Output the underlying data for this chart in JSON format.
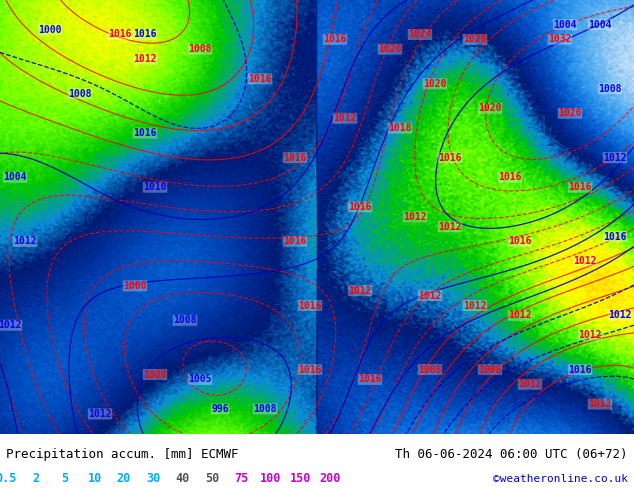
{
  "title_left": "Precipitation accum. [mm] ECMWF",
  "title_right": "Th 06-06-2024 06:00 UTC (06+72)",
  "credit": "©weatheronline.co.uk",
  "colorbar_values": [
    "0.5",
    "2",
    "5",
    "10",
    "20",
    "30",
    "40",
    "50",
    "75",
    "100",
    "150",
    "200"
  ],
  "colorbar_colors": [
    "#c8f0ff",
    "#96d2ff",
    "#64b4ff",
    "#3296ff",
    "#0064ff",
    "#00c800",
    "#64ff00",
    "#ffff00",
    "#ffc800",
    "#ff6400",
    "#ff0000",
    "#c800c8"
  ],
  "background_color": "#add8e6",
  "fig_width": 6.34,
  "fig_height": 4.9,
  "bottom_bar_color": "#ffffff",
  "label_color_left": "#000000",
  "label_color_right": "#000000",
  "credit_color": "#0000cc"
}
